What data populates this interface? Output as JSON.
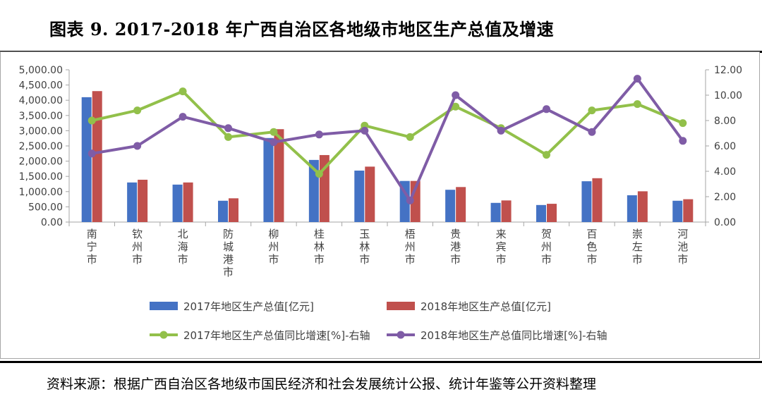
{
  "figure_title": "图表 9.   2017-2018 年广西自治区各地级市地区生产总值及增速",
  "source_note": "资料来源：根据广西自治区各地级市国民经济和社会发展统计公报、统计年鉴等公开资料整理",
  "colors": {
    "bar_2017": "#4472c4",
    "bar_2018": "#c0504d",
    "line_2017": "#92c04a",
    "line_2018": "#7f5ca6",
    "frame": "#a6a6a6"
  },
  "chart_data": {
    "type": "bar",
    "categories": [
      "南宁市",
      "钦州市",
      "北海市",
      "防城港市",
      "柳州市",
      "桂林市",
      "玉林市",
      "梧州市",
      "贵港市",
      "来宾市",
      "贺州市",
      "百色市",
      "崇左市",
      "河池市"
    ],
    "series": [
      {
        "name": "2017年地区生产总值[亿元]",
        "type": "bar",
        "axis": "left",
        "values": [
          4100,
          1300,
          1230,
          700,
          2760,
          2040,
          1690,
          1350,
          1060,
          630,
          560,
          1340,
          880,
          700
        ]
      },
      {
        "name": "2018年地区生产总值[亿元]",
        "type": "bar",
        "axis": "left",
        "values": [
          4300,
          1390,
          1300,
          780,
          3050,
          2200,
          1820,
          1350,
          1150,
          710,
          600,
          1440,
          1010,
          750
        ]
      },
      {
        "name": "2017年地区生产总值同比增速[%]-右轴",
        "type": "line",
        "axis": "right",
        "values": [
          8.0,
          8.8,
          10.3,
          6.7,
          7.1,
          3.8,
          7.6,
          6.7,
          9.1,
          7.4,
          5.3,
          8.8,
          9.3,
          7.8
        ]
      },
      {
        "name": "2018年地区生产总值同比增速[%]-右轴",
        "type": "line",
        "axis": "right",
        "values": [
          5.4,
          6.0,
          8.3,
          7.4,
          6.3,
          6.9,
          7.2,
          1.7,
          10.0,
          7.2,
          8.9,
          7.1,
          11.3,
          6.4
        ]
      }
    ],
    "y_left": {
      "min": 0,
      "max": 5000,
      "ticks": [
        "0.00",
        "500.00",
        "1,000.00",
        "1,500.00",
        "2,000.00",
        "2,500.00",
        "3,000.00",
        "3,500.00",
        "4,000.00",
        "4,500.00",
        "5,000.00"
      ]
    },
    "y_right": {
      "min": 0,
      "max": 12,
      "ticks": [
        "0.00",
        "2.00",
        "4.00",
        "6.00",
        "8.00",
        "10.00",
        "12.00"
      ]
    },
    "legend_position": "bottom",
    "grid": false
  }
}
